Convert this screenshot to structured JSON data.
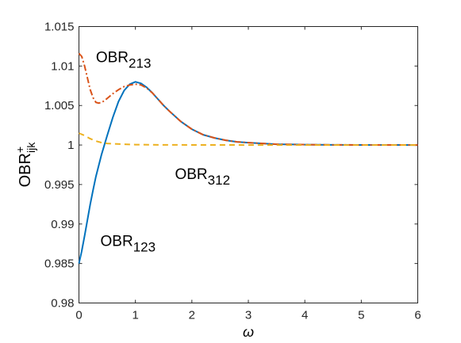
{
  "chart_data": {
    "type": "line",
    "xlabel": "ω",
    "ylabel": {
      "main": "OBR",
      "sup": "+",
      "sub": "ijk"
    },
    "xlim": [
      0,
      6
    ],
    "ylim": [
      0.98,
      1.015
    ],
    "xticks": [
      0,
      1,
      2,
      3,
      4,
      5,
      6
    ],
    "xtick_labels": [
      "0",
      "1",
      "2",
      "3",
      "4",
      "5",
      "6"
    ],
    "yticks": [
      0.98,
      0.985,
      0.99,
      0.995,
      1,
      1.005,
      1.01,
      1.015
    ],
    "ytick_labels": [
      "0.98",
      "0.985",
      "0.99",
      "0.995",
      "1",
      "1.005",
      "1.01",
      "1.015"
    ],
    "grid": false,
    "series": [
      {
        "name": "OBR_123",
        "color": "#0072bd",
        "style": "solid",
        "x": [
          0,
          0.05,
          0.1,
          0.15,
          0.2,
          0.25,
          0.3,
          0.4,
          0.5,
          0.6,
          0.7,
          0.8,
          0.9,
          1.0,
          1.1,
          1.2,
          1.3,
          1.4,
          1.5,
          1.6,
          1.8,
          2.0,
          2.2,
          2.4,
          2.6,
          2.8,
          3.0,
          3.5,
          4.0,
          4.5,
          5.0,
          5.5,
          6.0
        ],
        "y": [
          0.985,
          0.9866,
          0.9885,
          0.9905,
          0.9925,
          0.9943,
          0.996,
          0.9988,
          1.0012,
          1.0035,
          1.0055,
          1.0069,
          1.0077,
          1.008,
          1.0078,
          1.0073,
          1.0066,
          1.0058,
          1.005,
          1.0043,
          1.003,
          1.002,
          1.0013,
          1.0009,
          1.0006,
          1.0004,
          1.0003,
          1.0001,
          1.00005,
          1.00002,
          1.00001,
          1.000005,
          1.0
        ]
      },
      {
        "name": "OBR_213",
        "color": "#d95319",
        "style": "dashdot",
        "x": [
          0,
          0.05,
          0.1,
          0.15,
          0.2,
          0.25,
          0.3,
          0.35,
          0.4,
          0.45,
          0.5,
          0.6,
          0.7,
          0.8,
          0.9,
          1.0,
          1.1,
          1.2,
          1.3,
          1.4,
          1.5,
          1.6,
          1.8,
          2.0,
          2.2,
          2.4,
          2.6,
          2.8,
          3.0,
          3.5,
          4.0,
          4.5,
          5.0,
          5.5,
          6.0
        ],
        "y": [
          1.0116,
          1.0112,
          1.01,
          1.0085,
          1.007,
          1.006,
          1.0054,
          1.0053,
          1.0054,
          1.0056,
          1.0059,
          1.0065,
          1.007,
          1.0074,
          1.0076,
          1.0077,
          1.0076,
          1.0072,
          1.0066,
          1.0058,
          1.005,
          1.0043,
          1.003,
          1.002,
          1.0013,
          1.0009,
          1.0006,
          1.0004,
          1.0003,
          1.0001,
          1.00005,
          1.00002,
          1.00001,
          1.000005,
          1.0
        ]
      },
      {
        "name": "OBR_312",
        "color": "#edb120",
        "style": "dashed",
        "x": [
          0,
          0.1,
          0.2,
          0.3,
          0.4,
          0.5,
          0.6,
          0.8,
          1.0,
          1.5,
          2.0,
          3.0,
          4.0,
          5.0,
          6.0
        ],
        "y": [
          1.0015,
          1.0012,
          1.0008,
          1.0005,
          1.0003,
          1.0002,
          1.00015,
          1.0001,
          1.00005,
          1.00002,
          1.00001,
          1.0,
          1.0,
          1.0,
          1.0
        ]
      }
    ],
    "annotations": [
      {
        "main": "OBR",
        "sub": "213",
        "x": 0.3,
        "y": 1.0105
      },
      {
        "main": "OBR",
        "sub": "312",
        "x": 1.7,
        "y": 0.9957
      },
      {
        "main": "OBR",
        "sub": "123",
        "x": 0.38,
        "y": 0.9872
      }
    ]
  }
}
